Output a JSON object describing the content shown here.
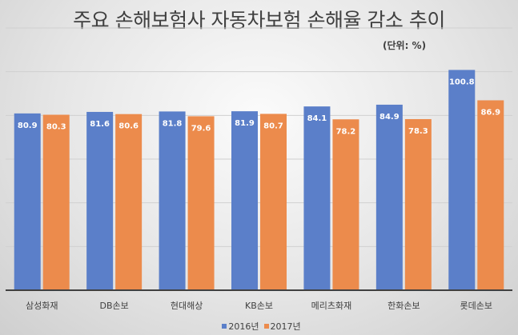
{
  "chart_data": {
    "type": "bar",
    "title": "주요 손해보험사 자동차보험 손해율 감소 추이",
    "unit_note": "(단위: %)",
    "categories": [
      "삼성화재",
      "DB손보",
      "현대해상",
      "KB손보",
      "메리츠화재",
      "한화손보",
      "롯데손보"
    ],
    "series": [
      {
        "name": "2016년",
        "color": "#5b7fc9",
        "values": [
          80.9,
          81.6,
          81.8,
          81.9,
          84.1,
          84.9,
          100.8
        ]
      },
      {
        "name": "2017년",
        "color": "#ec8b4c",
        "values": [
          80.3,
          80.6,
          79.6,
          80.7,
          78.2,
          78.3,
          86.9
        ]
      }
    ],
    "ylim": [
      0,
      120
    ],
    "ystep": 20,
    "grid": true,
    "legend": "bottom",
    "xlabel": "",
    "ylabel": ""
  }
}
